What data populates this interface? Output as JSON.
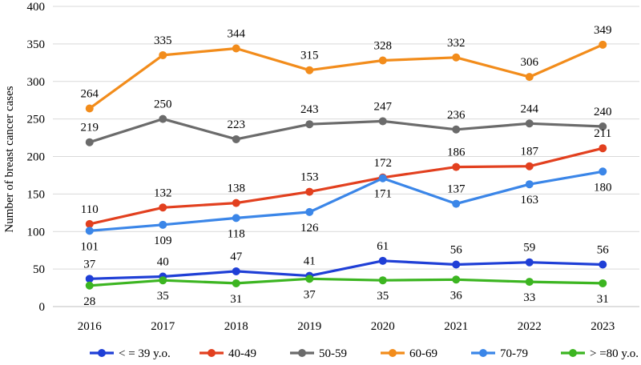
{
  "chart_data": {
    "type": "line",
    "title": "",
    "xlabel": "",
    "ylabel": "Number of breast cancer cases",
    "ylim": [
      0,
      400
    ],
    "yticks": [
      0,
      50,
      100,
      150,
      200,
      250,
      300,
      350,
      400
    ],
    "grid": "horizontal",
    "legend_position": "bottom",
    "categories": [
      "2016",
      "2017",
      "2018",
      "2019",
      "2020",
      "2021",
      "2022",
      "2023"
    ],
    "series": [
      {
        "name": "< = 39 y.o.",
        "color": "#1f3fd6",
        "values": [
          37,
          40,
          47,
          41,
          61,
          56,
          59,
          56
        ],
        "label_side": [
          "above",
          "above",
          "above",
          "above",
          "above",
          "above",
          "above",
          "above"
        ]
      },
      {
        "name": "40-49",
        "color": "#e2401f",
        "values": [
          110,
          132,
          138,
          153,
          172,
          186,
          187,
          211
        ],
        "label_side": [
          "above",
          "above",
          "above",
          "above",
          "above",
          "above",
          "above",
          "above"
        ]
      },
      {
        "name": "50-59",
        "color": "#6b6b6b",
        "values": [
          219,
          250,
          223,
          243,
          247,
          236,
          244,
          240
        ],
        "label_side": [
          "above",
          "above",
          "above",
          "above",
          "above",
          "above",
          "above",
          "above"
        ]
      },
      {
        "name": "60-69",
        "color": "#f28c1b",
        "values": [
          264,
          335,
          344,
          315,
          328,
          332,
          306,
          349
        ],
        "label_side": [
          "above",
          "above",
          "above",
          "above",
          "above",
          "above",
          "above",
          "above"
        ]
      },
      {
        "name": "70-79",
        "color": "#3b86e8",
        "values": [
          101,
          109,
          118,
          126,
          171,
          137,
          163,
          180
        ],
        "label_side": [
          "below",
          "below",
          "below",
          "below",
          "below",
          "above",
          "below",
          "below"
        ]
      },
      {
        "name": "> =80 y.o.",
        "color": "#3cb521",
        "values": [
          28,
          35,
          31,
          37,
          35,
          36,
          33,
          31
        ],
        "label_side": [
          "below",
          "below",
          "below",
          "below",
          "below",
          "below",
          "below",
          "below"
        ]
      }
    ]
  }
}
